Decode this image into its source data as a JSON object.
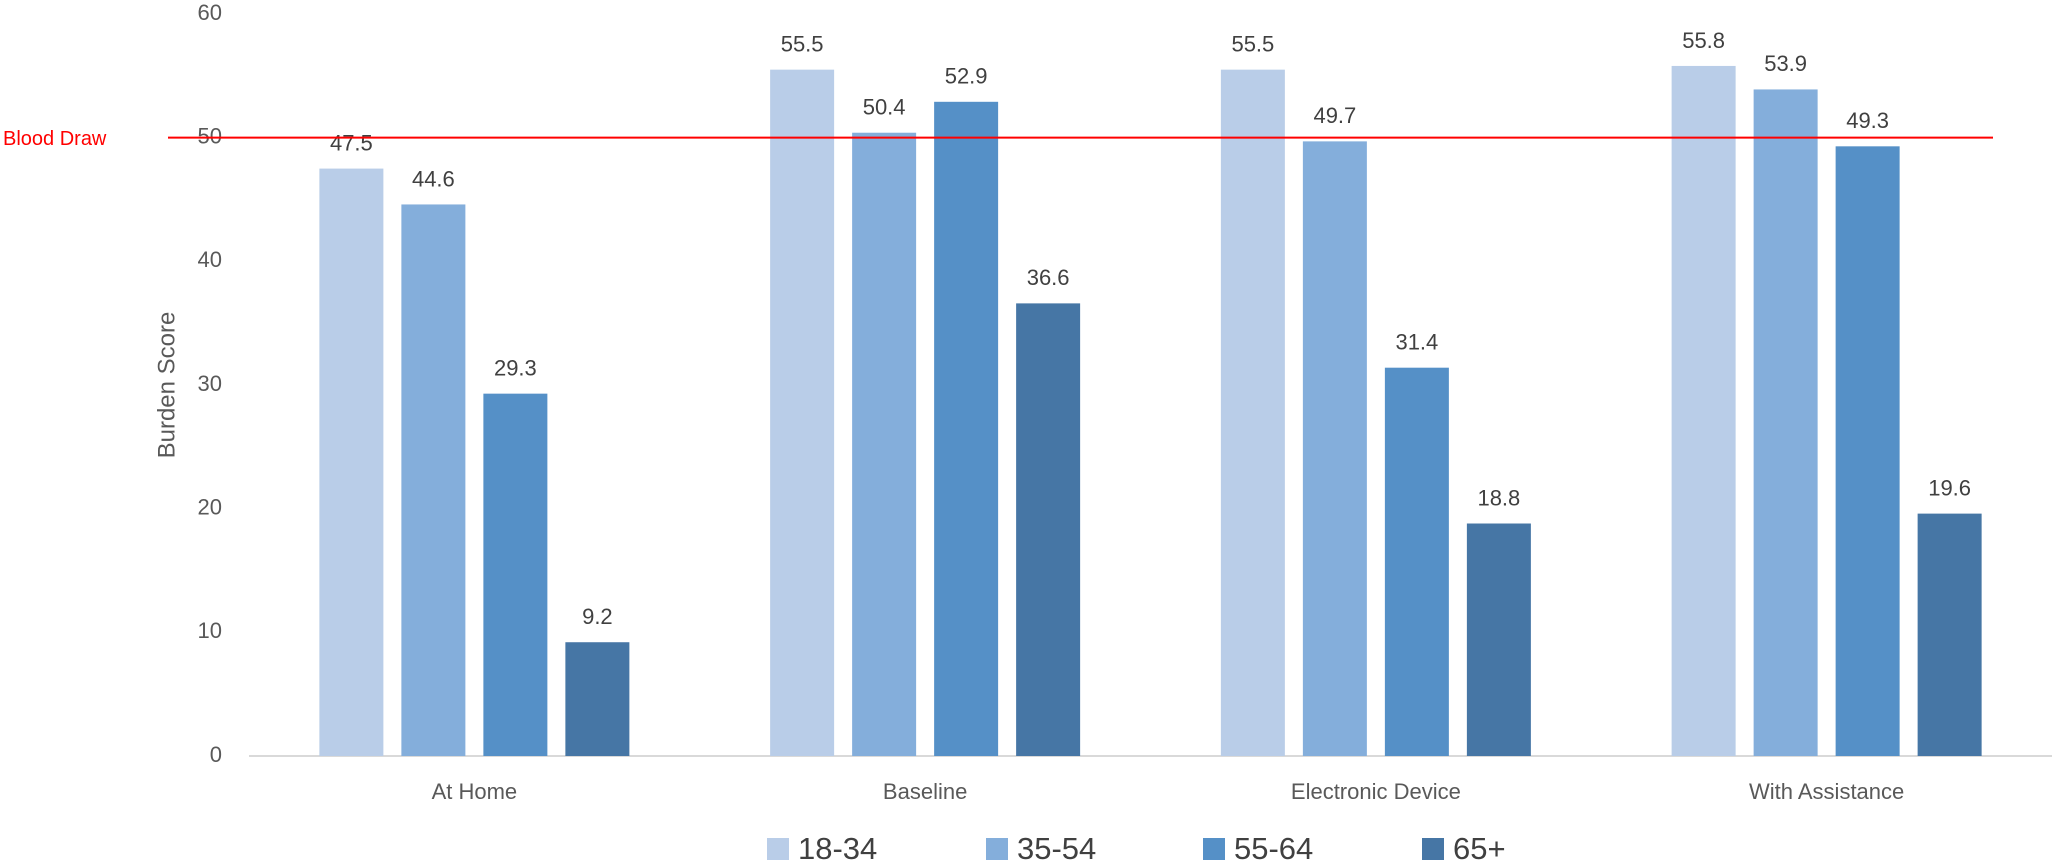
{
  "chart_data": {
    "type": "bar",
    "y_label": "Burden Score",
    "categories": [
      "At Home",
      "Baseline",
      "Electronic Device",
      "With Assistance"
    ],
    "series": [
      {
        "name": "18-34",
        "color": "#b9cde8",
        "values": [
          47.5,
          55.5,
          55.5,
          55.8
        ]
      },
      {
        "name": "35-54",
        "color": "#84aedb",
        "values": [
          44.6,
          50.4,
          49.7,
          53.9
        ]
      },
      {
        "name": "55-64",
        "color": "#5590c7",
        "values": [
          29.3,
          52.9,
          31.4,
          49.3
        ]
      },
      {
        "name": "65+",
        "color": "#4676a5",
        "values": [
          9.2,
          36.6,
          18.8,
          19.6
        ]
      }
    ],
    "ylim": [
      0,
      60
    ],
    "yticks": [
      0,
      10,
      20,
      30,
      40,
      50,
      60
    ],
    "grid": false,
    "reference_line": {
      "value": 50,
      "label": "Blood Draw",
      "color": "#ff0000"
    },
    "legend": "bottom"
  }
}
